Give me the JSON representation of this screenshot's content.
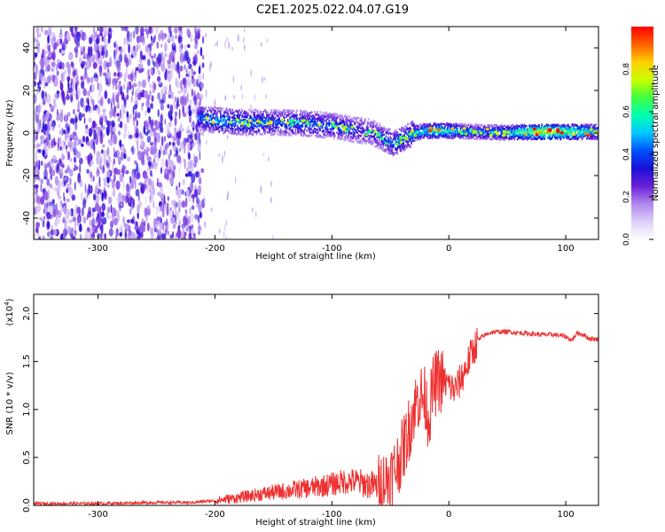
{
  "title": "C2E1.2025.022.04.07.G19",
  "chart_data": [
    {
      "type": "heatmap",
      "xlabel": "Height of straight line (km)",
      "ylabel": "Frequency (Hz)",
      "xlim": [
        -355,
        128
      ],
      "ylim": [
        -50,
        50
      ],
      "x_ticks": [
        -300,
        -200,
        -100,
        0,
        100
      ],
      "y_ticks": [
        -40,
        -20,
        0,
        20,
        40
      ],
      "grid": false,
      "colorbar": {
        "label": "Normalized spectral amplitude",
        "range": [
          0,
          1
        ],
        "ticks": [
          "0.0",
          "0.2",
          "0.4",
          "0.6",
          "0.8"
        ],
        "tick_values": [
          0,
          0.2,
          0.4,
          0.6,
          0.8
        ],
        "colormap": [
          "#ffffff",
          "#dccff8",
          "#b088ee",
          "#6a1fd8",
          "#1a10d8",
          "#0050ff",
          "#00c8ff",
          "#00ffb0",
          "#40ff40",
          "#c8ff00",
          "#ffd000",
          "#ff6000",
          "#ff0000"
        ]
      },
      "signal_track": {
        "x": [
          -215,
          -200,
          -175,
          -150,
          -125,
          -100,
          -80,
          -65,
          -55,
          -48,
          -40,
          -30,
          -20,
          -10,
          0,
          20,
          50,
          80,
          100,
          128
        ],
        "frequency": [
          7,
          6,
          5,
          5,
          4.5,
          3.5,
          1.5,
          0,
          -3,
          -5,
          -3,
          0,
          1,
          1,
          1,
          0.5,
          0.3,
          0.5,
          0.5,
          0.5
        ],
        "amplitude": [
          0.45,
          0.5,
          0.5,
          0.45,
          0.45,
          0.45,
          0.4,
          0.35,
          0.45,
          0.45,
          0.5,
          0.55,
          0.6,
          0.7,
          0.6,
          0.45,
          0.55,
          0.9,
          0.75,
          0.55
        ]
      },
      "noise_region_x": [
        -355,
        -210
      ]
    },
    {
      "type": "line",
      "xlabel": "Height of straight line (km)",
      "ylabel": "SNR (10 * v/v)",
      "y_scale_label": "(x10",
      "y_scale_exp": "4",
      "y_scale_close": ")",
      "xlim": [
        -355,
        128
      ],
      "ylim": [
        0,
        2.2
      ],
      "x_ticks": [
        -300,
        -200,
        -100,
        0,
        100
      ],
      "y_ticks": [
        "0.0",
        "0.5",
        "1.0",
        "1.5",
        "2.0"
      ],
      "y_tick_values": [
        0,
        0.5,
        1.0,
        1.5,
        2.0
      ],
      "grid": false,
      "series": [
        {
          "color": "#ee3030",
          "x": [
            -355,
            -300,
            -250,
            -220,
            -200,
            -180,
            -160,
            -140,
            -120,
            -110,
            -100,
            -90,
            -80,
            -70,
            -60,
            -50,
            -45,
            -40,
            -35,
            -30,
            -25,
            -20,
            -17,
            -14,
            -10,
            -5,
            0,
            5,
            10,
            15,
            20,
            25,
            30,
            35,
            40,
            50,
            60,
            70,
            80,
            90,
            95,
            100,
            105,
            110,
            115,
            120,
            128
          ],
          "values": [
            0.02,
            0.02,
            0.03,
            0.03,
            0.05,
            0.08,
            0.12,
            0.15,
            0.18,
            0.2,
            0.22,
            0.25,
            0.25,
            0.22,
            0.2,
            0.3,
            0.4,
            0.55,
            0.75,
            1.0,
            1.15,
            1.1,
            0.9,
            1.2,
            1.3,
            1.3,
            1.25,
            1.2,
            1.3,
            1.45,
            1.6,
            1.72,
            1.77,
            1.8,
            1.81,
            1.81,
            1.8,
            1.79,
            1.78,
            1.78,
            1.77,
            1.76,
            1.72,
            1.8,
            1.78,
            1.74,
            1.73
          ]
        }
      ]
    }
  ]
}
